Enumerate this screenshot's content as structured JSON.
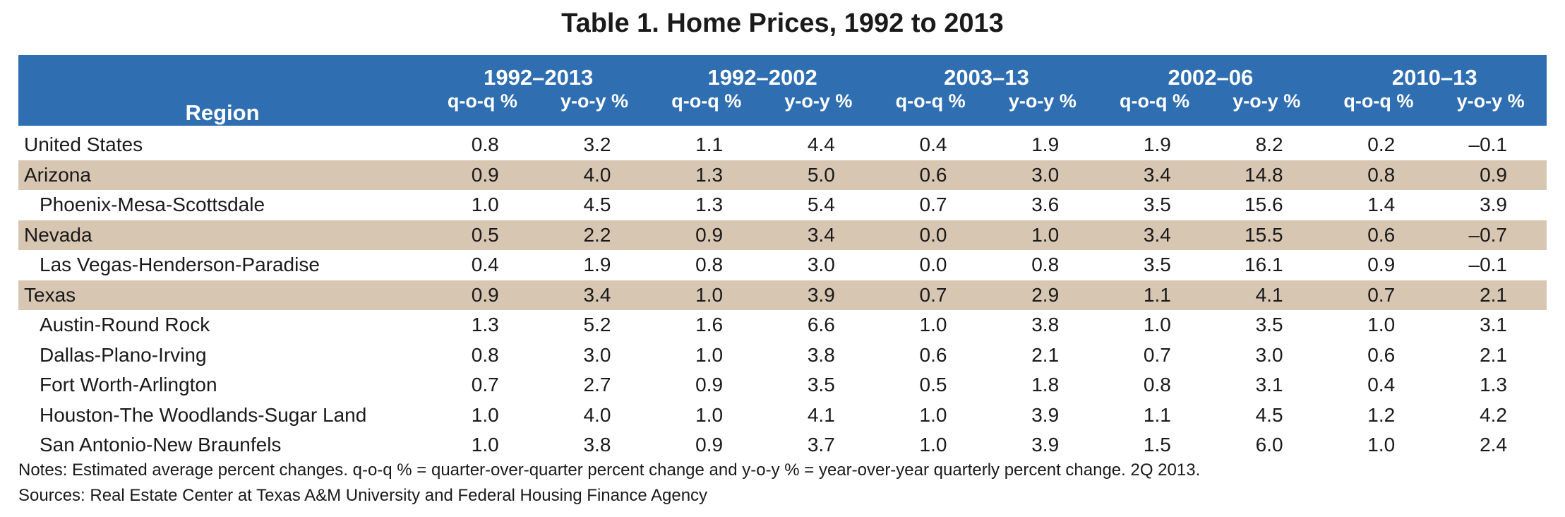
{
  "title": "Table 1. Home Prices, 1992 to 2013",
  "table": {
    "region_header": "Region",
    "column_groups": [
      {
        "label": "1992–2013",
        "columns": [
          "q-o-q %",
          "y-o-y %"
        ]
      },
      {
        "label": "1992–2002",
        "columns": [
          "q-o-q %",
          "y-o-y %"
        ]
      },
      {
        "label": "2003–13",
        "columns": [
          "q-o-q %",
          "y-o-y %"
        ]
      },
      {
        "label": "2002–06",
        "columns": [
          "q-o-q %",
          "y-o-y %"
        ]
      },
      {
        "label": "2010–13",
        "columns": [
          "q-o-q %",
          "y-o-y %"
        ]
      }
    ],
    "rows": [
      {
        "label": "United States",
        "values": [
          "0.8",
          "3.2",
          "1.1",
          "4.4",
          "0.4",
          "1.9",
          "1.9",
          "8.2",
          "0.2",
          "–0.1"
        ]
      },
      {
        "label": "Arizona",
        "values": [
          "0.9",
          "4.0",
          "1.3",
          "5.0",
          "0.6",
          "3.0",
          "3.4",
          "14.8",
          "0.8",
          "0.9"
        ],
        "metros": [
          {
            "label": "Phoenix-Mesa-Scottsdale",
            "values": [
              "1.0",
              "4.5",
              "1.3",
              "5.4",
              "0.7",
              "3.6",
              "3.5",
              "15.6",
              "1.4",
              "3.9"
            ]
          }
        ]
      },
      {
        "label": "Nevada",
        "values": [
          "0.5",
          "2.2",
          "0.9",
          "3.4",
          "0.0",
          "1.0",
          "3.4",
          "15.5",
          "0.6",
          "–0.7"
        ],
        "metros": [
          {
            "label": "Las Vegas-Henderson-Paradise",
            "values": [
              "0.4",
              "1.9",
              "0.8",
              "3.0",
              "0.0",
              "0.8",
              "3.5",
              "16.1",
              "0.9",
              "–0.1"
            ]
          }
        ]
      },
      {
        "label": "Texas",
        "values": [
          "0.9",
          "3.4",
          "1.0",
          "3.9",
          "0.7",
          "2.9",
          "1.1",
          "4.1",
          "0.7",
          "2.1"
        ],
        "metros": [
          {
            "label": "Austin-Round Rock",
            "values": [
              "1.3",
              "5.2",
              "1.6",
              "6.6",
              "1.0",
              "3.8",
              "1.0",
              "3.5",
              "1.0",
              "3.1"
            ]
          },
          {
            "label": "Dallas-Plano-Irving",
            "values": [
              "0.8",
              "3.0",
              "1.0",
              "3.8",
              "0.6",
              "2.1",
              "0.7",
              "3.0",
              "0.6",
              "2.1"
            ]
          },
          {
            "label": "Fort Worth-Arlington",
            "values": [
              "0.7",
              "2.7",
              "0.9",
              "3.5",
              "0.5",
              "1.8",
              "0.8",
              "3.1",
              "0.4",
              "1.3"
            ]
          },
          {
            "label": "Houston-The Woodlands-Sugar Land",
            "values": [
              "1.0",
              "4.0",
              "1.0",
              "4.1",
              "1.0",
              "3.9",
              "1.1",
              "4.5",
              "1.2",
              "4.2"
            ]
          },
          {
            "label": "San Antonio-New Braunfels",
            "values": [
              "1.0",
              "3.8",
              "0.9",
              "3.7",
              "1.0",
              "3.9",
              "1.5",
              "6.0",
              "1.0",
              "2.4"
            ]
          }
        ]
      }
    ]
  },
  "notes": "Notes: Estimated average percent changes. q-o-q % = quarter-over-quarter percent change and y-o-y % = year-over-year quarterly percent change. 2Q 2013.",
  "sources": "Sources: Real Estate Center at Texas A&M University and Federal Housing Finance Agency"
}
